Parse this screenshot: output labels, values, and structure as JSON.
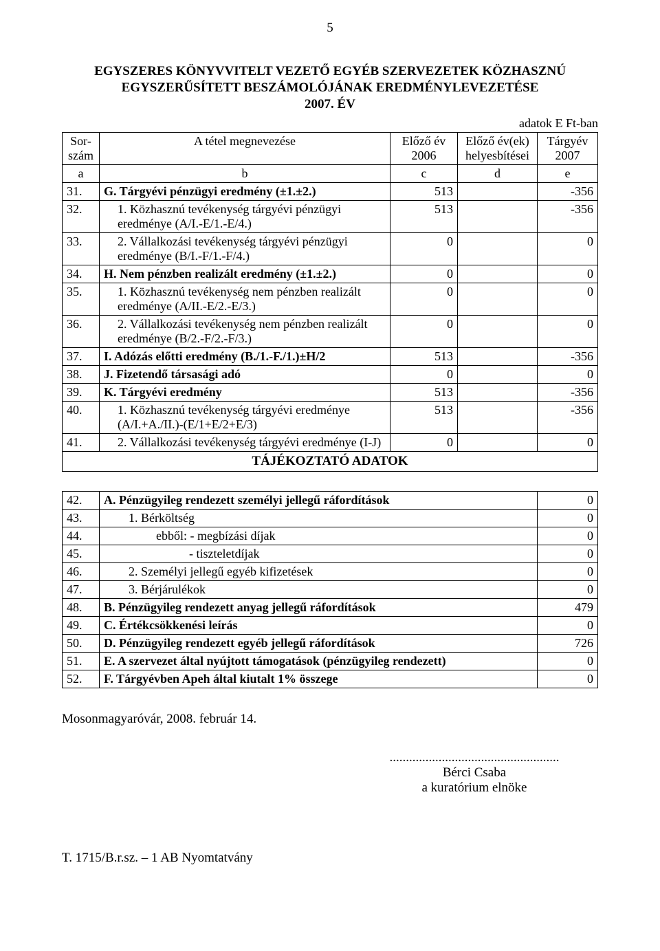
{
  "page_number": "5",
  "title_line1": "EGYSZERES KÖNYVVITELT VEZETŐ EGYÉB SZERVEZETEK KÖZHASZNÚ",
  "title_line2": "EGYSZERŰSÍTETT BESZÁMOLÓJÁNAK EREDMÉNYLEVEZETÉSE",
  "title_line3": "2007. ÉV",
  "unit_note": "adatok E Ft-ban",
  "header": {
    "sorszam1": "Sor-",
    "sorszam2": "szám",
    "megnev": "A tétel megnevezése",
    "prev1": "Előző év",
    "prev2": "2006",
    "corr1": "Előző év(ek)",
    "corr2": "helyesbítései",
    "curr1": "Tárgyév",
    "curr2": "2007",
    "a": "a",
    "b": "b",
    "c": "c",
    "d": "d",
    "e": "e"
  },
  "rows1": [
    {
      "n": "31.",
      "name": "G. Tárgyévi pénzügyi eredmény (±1.±2.)",
      "c": "513",
      "d": "",
      "e": "-356",
      "bold": true
    },
    {
      "n": "32.",
      "name": "1. Közhasznú tevékenység tárgyévi pénzügyi eredménye (A/I.-E/1.-E/4.)",
      "c": "513",
      "d": "",
      "e": "-356",
      "indent": true
    },
    {
      "n": "33.",
      "name": "2. Vállalkozási tevékenység tárgyévi pénzügyi eredménye (B/I.-F/1.-F/4.)",
      "c": "0",
      "d": "",
      "e": "0",
      "indent": true
    },
    {
      "n": "34.",
      "name": "H. Nem pénzben realizált eredmény (±1.±2.)",
      "c": "0",
      "d": "",
      "e": "0",
      "bold": true
    },
    {
      "n": "35.",
      "name": "1. Közhasznú tevékenység nem pénzben realizált eredménye (A/II.-E/2.-E/3.)",
      "c": "0",
      "d": "",
      "e": "0",
      "indent": true
    },
    {
      "n": "36.",
      "name": "2. Vállalkozási tevékenység nem pénzben realizált eredménye (B/2.-F/2.-F/3.)",
      "c": "0",
      "d": "",
      "e": "0",
      "indent": true
    },
    {
      "n": "37.",
      "name": "I. Adózás előtti eredmény (B./1.-F./1.)±H/2",
      "c": "513",
      "d": "",
      "e": "-356",
      "bold": true
    },
    {
      "n": "38.",
      "name": "J. Fizetendő társasági adó",
      "c": "0",
      "d": "",
      "e": "0",
      "bold": true
    },
    {
      "n": "39.",
      "name": "K. Tárgyévi eredmény",
      "c": "513",
      "d": "",
      "e": "-356",
      "bold": true
    },
    {
      "n": "40.",
      "name": "1. Közhasznú tevékenység tárgyévi eredménye (A/I.+A./II.)-(E/1+E/2+E/3)",
      "c": "513",
      "d": "",
      "e": "-356",
      "indent": true
    },
    {
      "n": "41.",
      "name": "2. Vállalkozási tevékenység tárgyévi eredménye (I-J)",
      "c": "0",
      "d": "",
      "e": "0",
      "indent": true
    }
  ],
  "section_title": "TÁJÉKOZTATÓ ADATOK",
  "rows2": [
    {
      "n": "42.",
      "name": "A. Pénzügyileg rendezett személyi jellegű ráfordítások",
      "v": "0",
      "bold": true
    },
    {
      "n": "43.",
      "name": "1. Bérköltség",
      "v": "0",
      "cls": "c2-indent1"
    },
    {
      "n": "44.",
      "name": "ebből:  - megbízási díjak",
      "v": "0",
      "cls": "c2-indent2"
    },
    {
      "n": "45.",
      "name": "- tiszteletdíjak",
      "v": "0",
      "cls": "c2-indent3"
    },
    {
      "n": "46.",
      "name": "2. Személyi jellegű egyéb kifizetések",
      "v": "0",
      "cls": "c2-indent1"
    },
    {
      "n": "47.",
      "name": "3. Bérjárulékok",
      "v": "0",
      "cls": "c2-indent1"
    },
    {
      "n": "48.",
      "name": "B. Pénzügyileg rendezett anyag jellegű ráfordítások",
      "v": "479",
      "bold": true
    },
    {
      "n": "49.",
      "name": "C. Értékcsökkenési leírás",
      "v": "0",
      "bold": true
    },
    {
      "n": "50.",
      "name": "D. Pénzügyileg rendezett egyéb jellegű ráfordítások",
      "v": "726",
      "bold": true
    },
    {
      "n": "51.",
      "name": "E. A szervezet által nyújtott támogatások (pénzügyileg rendezett)",
      "v": "0",
      "bold": true
    },
    {
      "n": "52.",
      "name": "F. Tárgyévben Apeh által kiutalt 1% összege",
      "v": "0",
      "bold": true
    }
  ],
  "footer_place_date": "Mosonmagyaróvár, 2008. február 14.",
  "sign_dots": "....................................................",
  "sign_name": "Bérci Csaba",
  "sign_role": "a kuratórium elnöke",
  "form_ref": "T. 1715/B.r.sz. – 1 AB Nyomtatvány"
}
